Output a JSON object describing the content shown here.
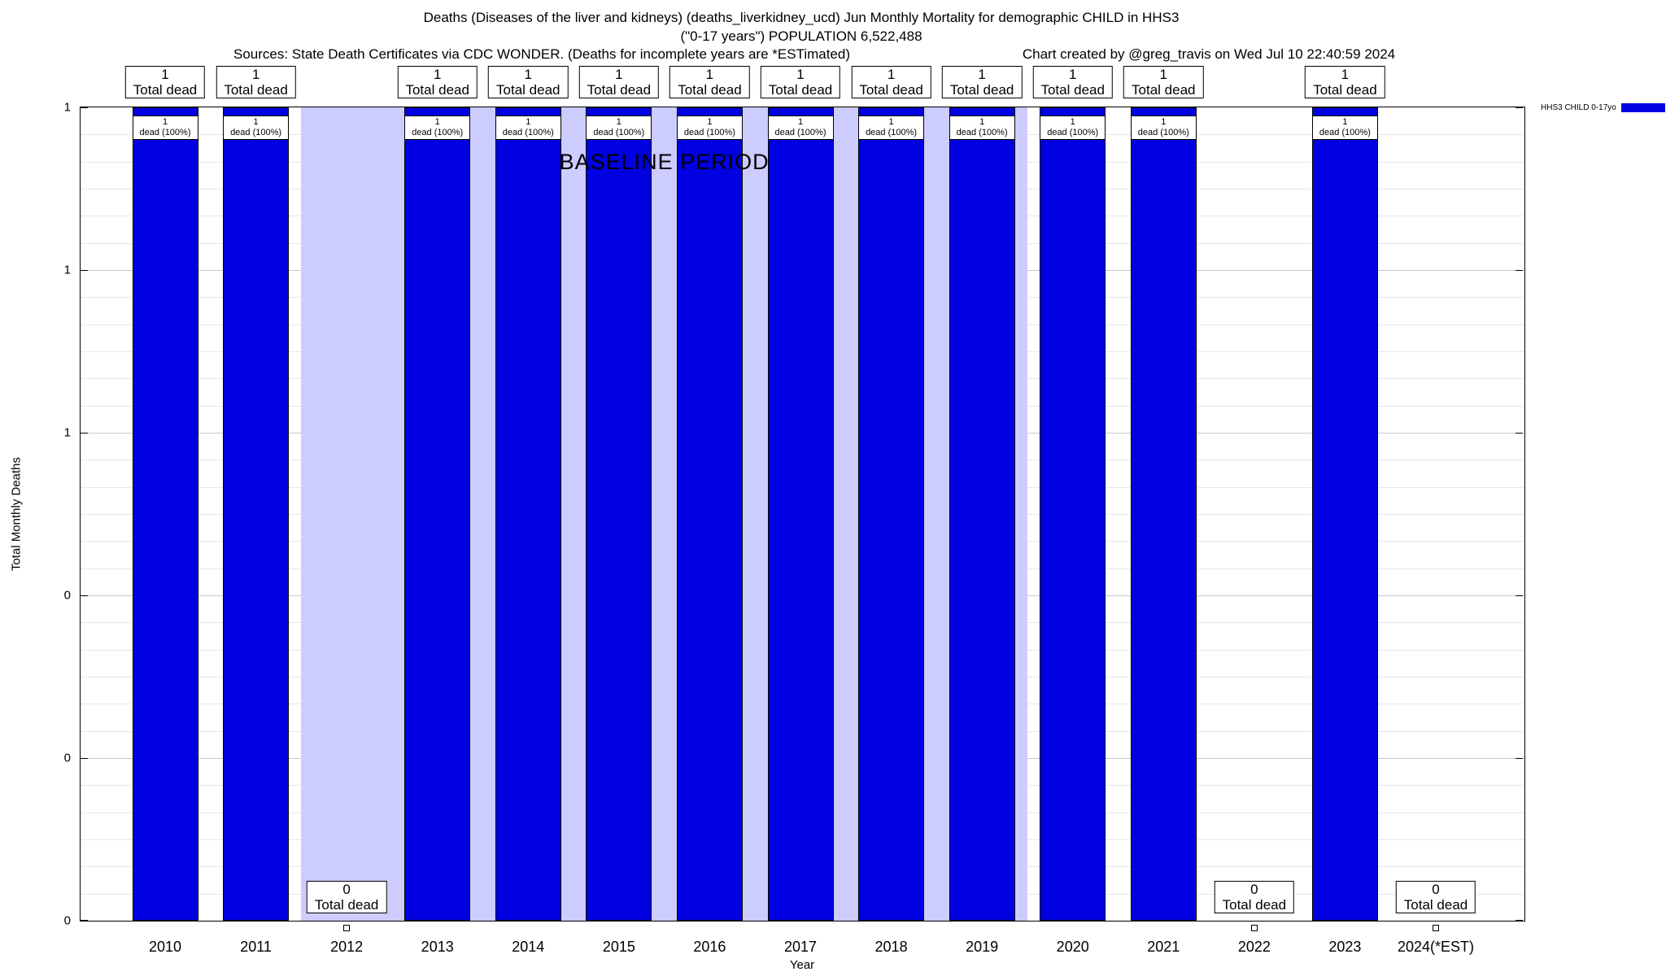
{
  "header": {
    "title_line1": "Deaths (Diseases of the liver and kidneys) (deaths_liverkidney_ucd) Jun Monthly Mortality for demographic CHILD in HHS3",
    "title_line2": "(\"0-17 years\") POPULATION 6,522,488",
    "sources": "Sources: State Death Certificates via CDC WONDER. (Deaths for incomplete years are *ESTimated)",
    "credit": "Chart created by @greg_travis on Wed Jul 10 22:40:59 2024"
  },
  "legend": {
    "label": "HHS3 CHILD 0-17yo",
    "color": "#0000e0"
  },
  "chart_data": {
    "type": "bar",
    "title": "Deaths (Diseases of the liver and kidneys) (deaths_liverkidney_ucd) Jun Monthly Mortality for demographic CHILD in HHS3",
    "subtitle": "(\"0-17 years\") POPULATION 6,522,488",
    "xlabel": "Year",
    "ylabel": "Total Monthly Deaths",
    "ylim": [
      0,
      1
    ],
    "categories": [
      "2010",
      "2011",
      "2012",
      "2013",
      "2014",
      "2015",
      "2016",
      "2017",
      "2018",
      "2019",
      "2020",
      "2021",
      "2022",
      "2023",
      "2024(*EST)"
    ],
    "values": [
      1,
      1,
      0,
      1,
      1,
      1,
      1,
      1,
      1,
      1,
      1,
      1,
      0,
      1,
      0
    ],
    "ytick_values": [
      0,
      0.2,
      0.4,
      0.6,
      0.8,
      1
    ],
    "ytick_labels": [
      "0",
      "0",
      "0",
      "1",
      "1",
      "1"
    ],
    "grid": true,
    "legend_position": "top-right",
    "bar_color": "#0000e0",
    "bar_top_label_suffix": "Total dead",
    "bar_inner_label_suffix": "dead (100%)",
    "baseline_band": {
      "label": "BASELINE PERIOD",
      "start_category": "2012",
      "end_category": "2019",
      "color": "#ccccff"
    }
  }
}
